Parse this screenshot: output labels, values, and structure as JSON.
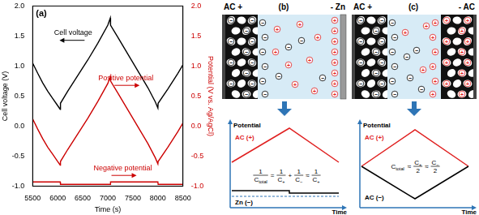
{
  "chart_data": {
    "type": "line",
    "panel_label": "(a)",
    "x_label": "Time (s)",
    "y_label": "Cell voltage (V)",
    "y2_label": "Potential (V vs. Ag/AgCl)",
    "x": [
      5500,
      5600,
      5700,
      5800,
      5900,
      6000,
      6050,
      6055,
      6200,
      6400,
      6600,
      6800,
      7000,
      7050,
      7055,
      7200,
      7400,
      7600,
      7800,
      7950,
      8000,
      8005,
      8200,
      8400,
      8500
    ],
    "xlim": [
      5500,
      8500
    ],
    "xticks": [
      5500,
      6000,
      6500,
      7000,
      7500,
      8000,
      8500
    ],
    "ylim": [
      -1,
      2
    ],
    "yticks": [
      {
        "value": -1,
        "label": "-1.0"
      },
      -0.5,
      {
        "value": 0,
        "label": "0.0"
      },
      0.5,
      {
        "value": 1,
        "label": "1.0"
      },
      1.5,
      {
        "value": 2,
        "label": "2.0"
      }
    ],
    "y2lim": [
      -1,
      2
    ],
    "y2ticks": [
      {
        "value": -1,
        "label": "-1.0"
      },
      -0.5,
      {
        "value": 0,
        "label": "0.0"
      },
      0.5,
      {
        "value": 1,
        "label": "1.0"
      },
      1.5,
      {
        "value": 2,
        "label": "2.0"
      }
    ],
    "grid": false,
    "series": [
      {
        "name": "Cell voltage",
        "color": "#000000",
        "values": [
          1.05,
          0.88,
          0.72,
          0.58,
          0.46,
          0.34,
          0.28,
          0.38,
          0.58,
          0.84,
          1.1,
          1.38,
          1.68,
          1.8,
          1.68,
          1.48,
          1.2,
          0.92,
          0.64,
          0.4,
          0.3,
          0.38,
          0.62,
          0.88,
          1.02
        ]
      },
      {
        "name": "Positive potential",
        "color": "#cc0000",
        "axis": "y2",
        "values": [
          0.12,
          -0.05,
          -0.21,
          -0.35,
          -0.47,
          -0.59,
          -0.65,
          -0.59,
          -0.39,
          -0.13,
          0.13,
          0.41,
          0.71,
          0.83,
          0.75,
          0.55,
          0.27,
          -0.01,
          -0.29,
          -0.53,
          -0.63,
          -0.59,
          -0.35,
          -0.09,
          0.05
        ]
      },
      {
        "name": "Negative potential",
        "color": "#cc0000",
        "axis": "y2",
        "values": [
          -0.93,
          -0.93,
          -0.93,
          -0.93,
          -0.93,
          -0.93,
          -0.93,
          -0.97,
          -0.97,
          -0.97,
          -0.97,
          -0.97,
          -0.97,
          -0.97,
          -0.93,
          -0.93,
          -0.93,
          -0.93,
          -0.93,
          -0.93,
          -0.93,
          -0.97,
          -0.97,
          -0.97,
          -0.97
        ]
      }
    ]
  },
  "diagrams": [
    {
      "label": "(b)",
      "positive_electrode": "AC +",
      "negative_electrode": "- Zn",
      "ion_signs": {
        "cation": "+",
        "anion": "−"
      },
      "plot": {
        "y_label": "Potential",
        "x_label": "Time",
        "positive_curve": "AC (+)",
        "negative_curve": "Zn (−)",
        "formula": [
          {
            "num": "1",
            "den": {
              "text": "C",
              "sub": "total"
            }
          },
          "=",
          {
            "num": "1",
            "den": {
              "text": "C",
              "sub": "+"
            }
          },
          "+",
          {
            "num": "1",
            "den": {
              "text": "C",
              "sub": "−"
            }
          },
          "≈",
          {
            "num": "1",
            "den": {
              "text": "C",
              "sub": "+"
            }
          }
        ]
      }
    },
    {
      "label": "(c)",
      "positive_electrode": "AC +",
      "negative_electrode": "- AC",
      "ion_signs": {
        "cation": "+",
        "anion": "−"
      },
      "plot": {
        "y_label": "Potential",
        "x_label": "Time",
        "positive_curve": "AC (+)",
        "negative_curve": "AC (−)",
        "formula": [
          {
            "text": "C",
            "sub": "total"
          },
          "≈",
          {
            "num": {
              "text": "C",
              "sub": "+"
            },
            "den": "2"
          },
          "≈",
          {
            "num": {
              "text": "C",
              "sub": "−"
            },
            "den": "2"
          }
        ]
      }
    }
  ]
}
